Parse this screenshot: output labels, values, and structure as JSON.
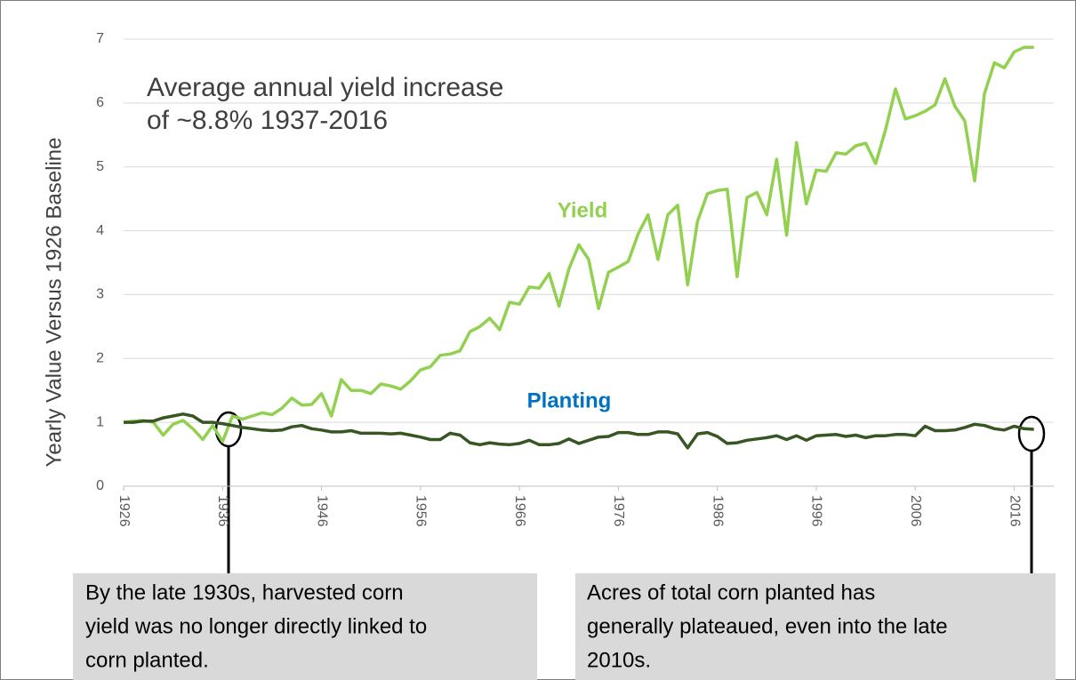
{
  "chart_data": {
    "type": "line",
    "ylabel": "Yearly Value Versus 1926 Baseline",
    "annotation": [
      "Average annual yield increase",
      "of ~8.8% 1937-2016"
    ],
    "notes": [
      [
        "By the late 1930s, harvested corn",
        "yield was no longer directly linked to",
        "corn planted."
      ],
      [
        "Acres of total corn planted has",
        "generally plateaued, even into the late",
        "2010s."
      ]
    ],
    "x": [
      1926,
      1927,
      1928,
      1929,
      1930,
      1931,
      1932,
      1933,
      1934,
      1935,
      1936,
      1937,
      1938,
      1939,
      1940,
      1941,
      1942,
      1943,
      1944,
      1945,
      1946,
      1947,
      1948,
      1949,
      1950,
      1951,
      1952,
      1953,
      1954,
      1955,
      1956,
      1957,
      1958,
      1959,
      1960,
      1961,
      1962,
      1963,
      1964,
      1965,
      1966,
      1967,
      1968,
      1969,
      1970,
      1971,
      1972,
      1973,
      1974,
      1975,
      1976,
      1977,
      1978,
      1979,
      1980,
      1981,
      1982,
      1983,
      1984,
      1985,
      1986,
      1987,
      1988,
      1989,
      1990,
      1991,
      1992,
      1993,
      1994,
      1995,
      1996,
      1997,
      1998,
      1999,
      2000,
      2001,
      2002,
      2003,
      2004,
      2005,
      2006,
      2007,
      2008,
      2009,
      2010,
      2011,
      2012,
      2013,
      2014,
      2015,
      2016,
      2017,
      2018
    ],
    "series": [
      {
        "name": "Yield",
        "color": "#92d050",
        "label_color": "#92d050",
        "values": [
          1.0,
          1.02,
          1.03,
          1.0,
          0.8,
          0.97,
          1.03,
          0.9,
          0.73,
          0.95,
          0.7,
          1.1,
          1.05,
          1.1,
          1.15,
          1.12,
          1.22,
          1.38,
          1.27,
          1.28,
          1.45,
          1.1,
          1.67,
          1.5,
          1.5,
          1.45,
          1.6,
          1.57,
          1.52,
          1.65,
          1.82,
          1.87,
          2.05,
          2.07,
          2.12,
          2.42,
          2.5,
          2.63,
          2.45,
          2.88,
          2.85,
          3.12,
          3.1,
          3.33,
          2.82,
          3.4,
          3.78,
          3.55,
          2.78,
          3.35,
          3.43,
          3.52,
          3.95,
          4.25,
          3.55,
          4.25,
          4.4,
          3.15,
          4.15,
          4.58,
          4.63,
          4.65,
          3.28,
          4.52,
          4.6,
          4.25,
          5.12,
          3.93,
          5.38,
          4.42,
          4.95,
          4.93,
          5.22,
          5.2,
          5.33,
          5.37,
          5.05,
          5.58,
          6.22,
          5.75,
          5.8,
          5.87,
          5.97,
          6.38,
          5.95,
          5.72,
          4.78,
          6.15,
          6.63,
          6.55,
          6.8,
          6.87,
          6.87
        ]
      },
      {
        "name": "Planting",
        "color": "#375623",
        "label_color": "#0070c0",
        "values": [
          1.0,
          1.0,
          1.02,
          1.02,
          1.07,
          1.1,
          1.13,
          1.1,
          1.0,
          1.0,
          0.98,
          0.95,
          0.92,
          0.9,
          0.88,
          0.87,
          0.88,
          0.93,
          0.95,
          0.9,
          0.88,
          0.85,
          0.85,
          0.87,
          0.83,
          0.83,
          0.83,
          0.82,
          0.83,
          0.8,
          0.77,
          0.73,
          0.73,
          0.83,
          0.8,
          0.68,
          0.65,
          0.68,
          0.66,
          0.65,
          0.67,
          0.72,
          0.65,
          0.65,
          0.67,
          0.74,
          0.67,
          0.72,
          0.77,
          0.78,
          0.84,
          0.84,
          0.81,
          0.81,
          0.85,
          0.85,
          0.82,
          0.6,
          0.82,
          0.84,
          0.78,
          0.67,
          0.68,
          0.72,
          0.74,
          0.76,
          0.79,
          0.73,
          0.79,
          0.72,
          0.79,
          0.8,
          0.81,
          0.78,
          0.8,
          0.76,
          0.79,
          0.79,
          0.81,
          0.81,
          0.79,
          0.94,
          0.87,
          0.87,
          0.88,
          0.92,
          0.97,
          0.95,
          0.9,
          0.88,
          0.94,
          0.9,
          0.89
        ]
      }
    ],
    "xlim": [
      1926,
      2020
    ],
    "xticks": [
      1926,
      1936,
      1946,
      1956,
      1966,
      1976,
      1986,
      1996,
      2006,
      2016
    ],
    "ylim": [
      0,
      7
    ],
    "yticks": [
      0,
      1,
      2,
      3,
      4,
      5,
      6,
      7
    ],
    "grid": true
  }
}
